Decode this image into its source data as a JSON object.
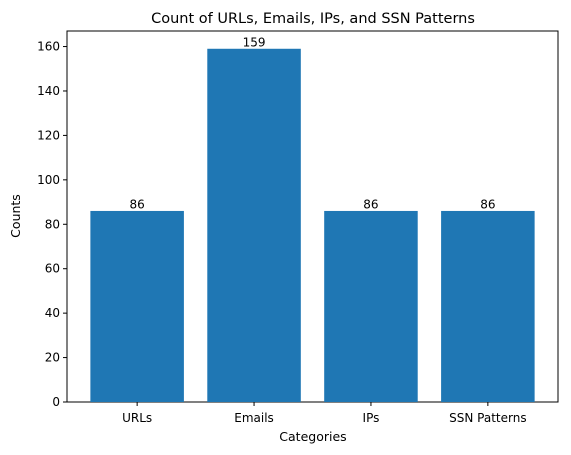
{
  "chart_data": {
    "type": "bar",
    "title": "Count of URLs, Emails, IPs, and SSN Patterns",
    "xlabel": "Categories",
    "ylabel": "Counts",
    "categories": [
      "URLs",
      "Emails",
      "IPs",
      "SSN Patterns"
    ],
    "values": [
      86,
      159,
      86,
      86
    ],
    "data_labels": [
      "86",
      "159",
      "86",
      "86"
    ],
    "ylim": [
      0,
      167
    ],
    "yticks": [
      0,
      20,
      40,
      60,
      80,
      100,
      120,
      140,
      160
    ],
    "ytick_labels": [
      "0",
      "20",
      "40",
      "60",
      "80",
      "100",
      "120",
      "140",
      "160"
    ],
    "grid": false,
    "bar_color": "#1f77b4"
  }
}
